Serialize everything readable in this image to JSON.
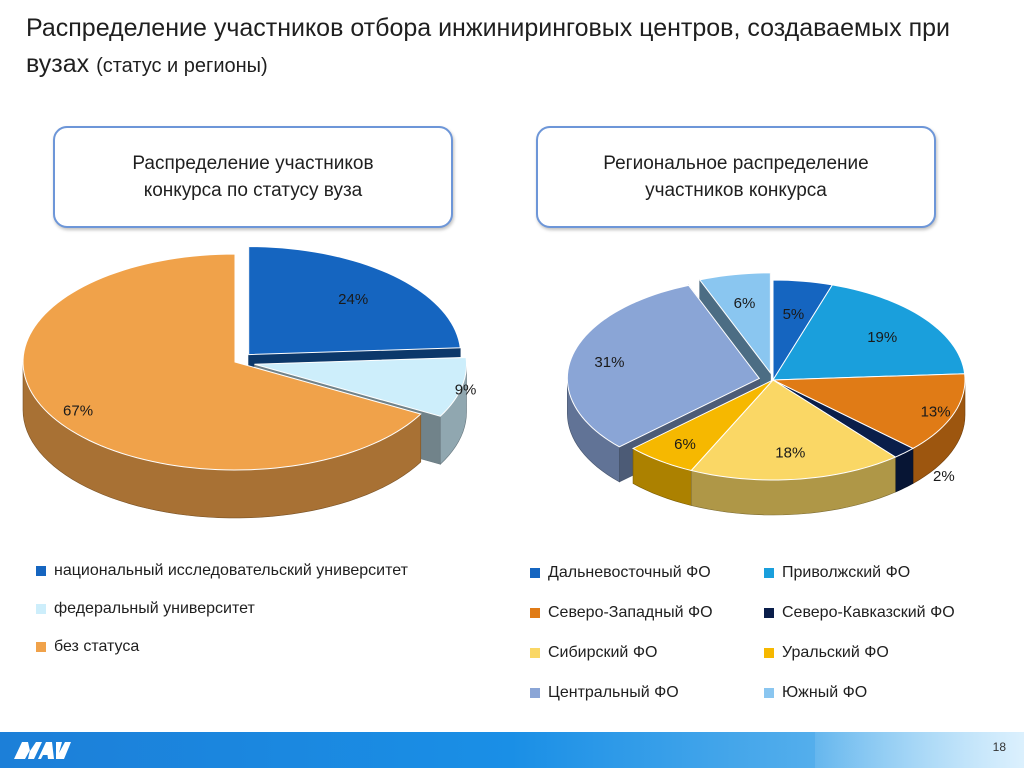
{
  "slide": {
    "title_main": "Распределение участников отбора инжиниринговых центров, создаваемых при вузах",
    "title_sub": "(статус и регионы)",
    "page_number": "18"
  },
  "boxes": {
    "left": "Распределение участников\nконкурса по статусу вуза",
    "right": "Региональное распределение\nучастников конкурса"
  },
  "colors": {
    "dark_blue": "#1565c0",
    "light_cyan": "#cdeefb",
    "orange": "#f0a24a",
    "teal_blue": "#1a9fdc",
    "dark_orange": "#e07b16",
    "navy": "#0a1e4a",
    "light_yellow": "#fad765",
    "gold": "#f6b800",
    "steel_blue": "#8aa5d6",
    "sky_blue": "#8ac6f0",
    "footer": "#1a8fe6"
  },
  "chart_data": [
    {
      "type": "pie",
      "title": "",
      "series": [
        {
          "label": "национальный исследовательский университет",
          "value": 24,
          "display": "24%",
          "color": "#1565c0",
          "exploded": true
        },
        {
          "label": "федеральный университет",
          "value": 9,
          "display": "9%",
          "color": "#cdeefb",
          "exploded": true
        },
        {
          "label": "без статуса",
          "value": 67,
          "display": "67%",
          "color": "#f0a24a",
          "exploded": false
        }
      ],
      "legend_placement": "bottom"
    },
    {
      "type": "pie",
      "title": "",
      "series": [
        {
          "label": "Дальневосточный ФО",
          "value": 5,
          "display": "5%",
          "color": "#1565c0"
        },
        {
          "label": "Приволжский ФО",
          "value": 19,
          "display": "19%",
          "color": "#1a9fdc"
        },
        {
          "label": "Северо-Западный ФО",
          "value": 13,
          "display": "13%",
          "color": "#e07b16"
        },
        {
          "label": "Северо-Кавказский ФО",
          "value": 2,
          "display": "2%",
          "color": "#0a1e4a"
        },
        {
          "label": "Сибирский ФО",
          "value": 18,
          "display": "18%",
          "color": "#fad765"
        },
        {
          "label": "Уральский ФО",
          "value": 6,
          "display": "6%",
          "color": "#f6b800"
        },
        {
          "label": "Центральный ФО",
          "value": 31,
          "display": "31%",
          "color": "#8aa5d6",
          "exploded": true
        },
        {
          "label": "Южный ФО",
          "value": 6,
          "display": "6%",
          "color": "#8ac6f0",
          "exploded": true
        }
      ],
      "legend_placement": "bottom"
    }
  ]
}
